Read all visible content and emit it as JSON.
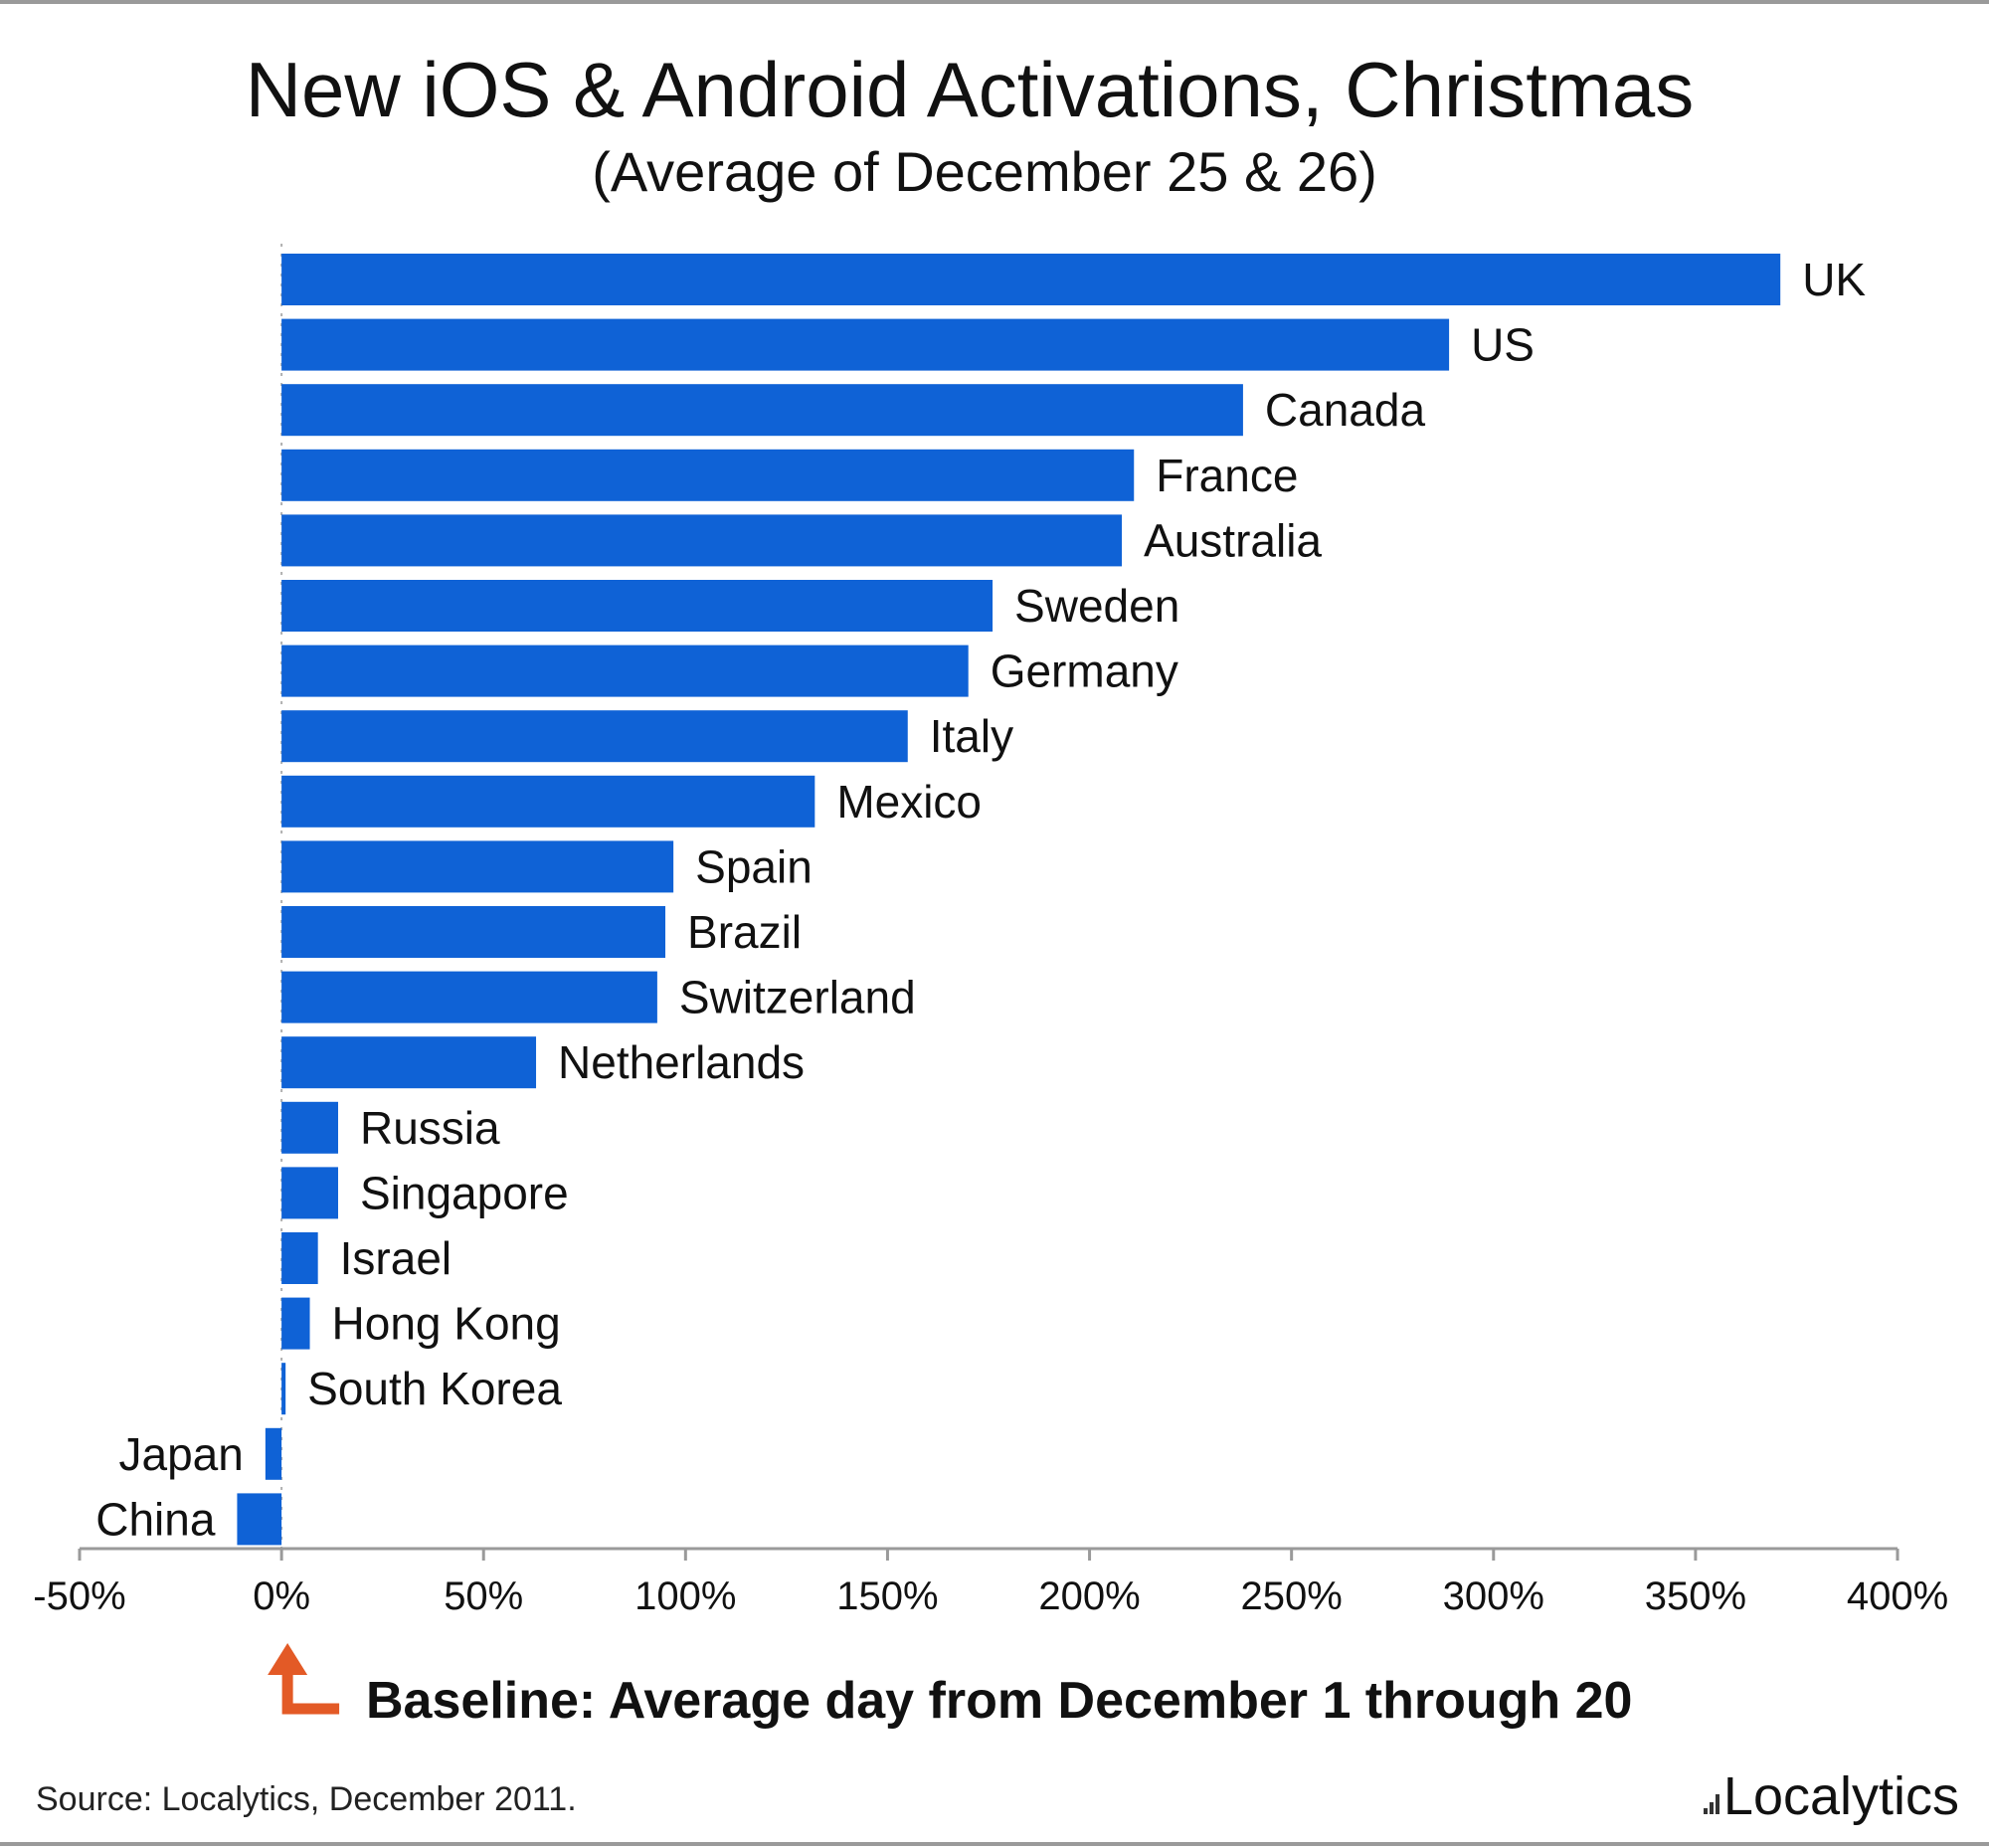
{
  "chart_data": {
    "type": "bar",
    "orientation": "horizontal",
    "title": "New iOS & Android Activations, Christmas",
    "subtitle": "(Average of December 25 & 26)",
    "categories": [
      "UK",
      "US",
      "Canada",
      "France",
      "Australia",
      "Sweden",
      "Germany",
      "Italy",
      "Mexico",
      "Spain",
      "Brazil",
      "Switzerland",
      "Netherlands",
      "Russia",
      "Singapore",
      "Israel",
      "Hong Kong",
      "South Korea",
      "Japan",
      "China"
    ],
    "values": [
      371,
      289,
      238,
      211,
      208,
      176,
      170,
      155,
      132,
      97,
      95,
      93,
      63,
      14,
      14,
      9,
      7,
      1,
      -4,
      -11
    ],
    "xlim": [
      -50,
      400
    ],
    "xticks": [
      -50,
      0,
      50,
      100,
      150,
      200,
      250,
      300,
      350,
      400
    ],
    "xtick_labels": [
      "-50%",
      "0%",
      "50%",
      "100%",
      "150%",
      "200%",
      "250%",
      "300%",
      "350%",
      "400%"
    ],
    "bar_color": "#0f62d6",
    "grid": false,
    "legend": "none"
  },
  "annotation": {
    "baseline_text": "Baseline: Average day from December 1 through 20",
    "arrow_color": "#e35a26",
    "arrow_icon": "corner-up-arrow-icon"
  },
  "footer": {
    "source": "Source: Localytics, December 2011.",
    "brand": "Localytics"
  }
}
